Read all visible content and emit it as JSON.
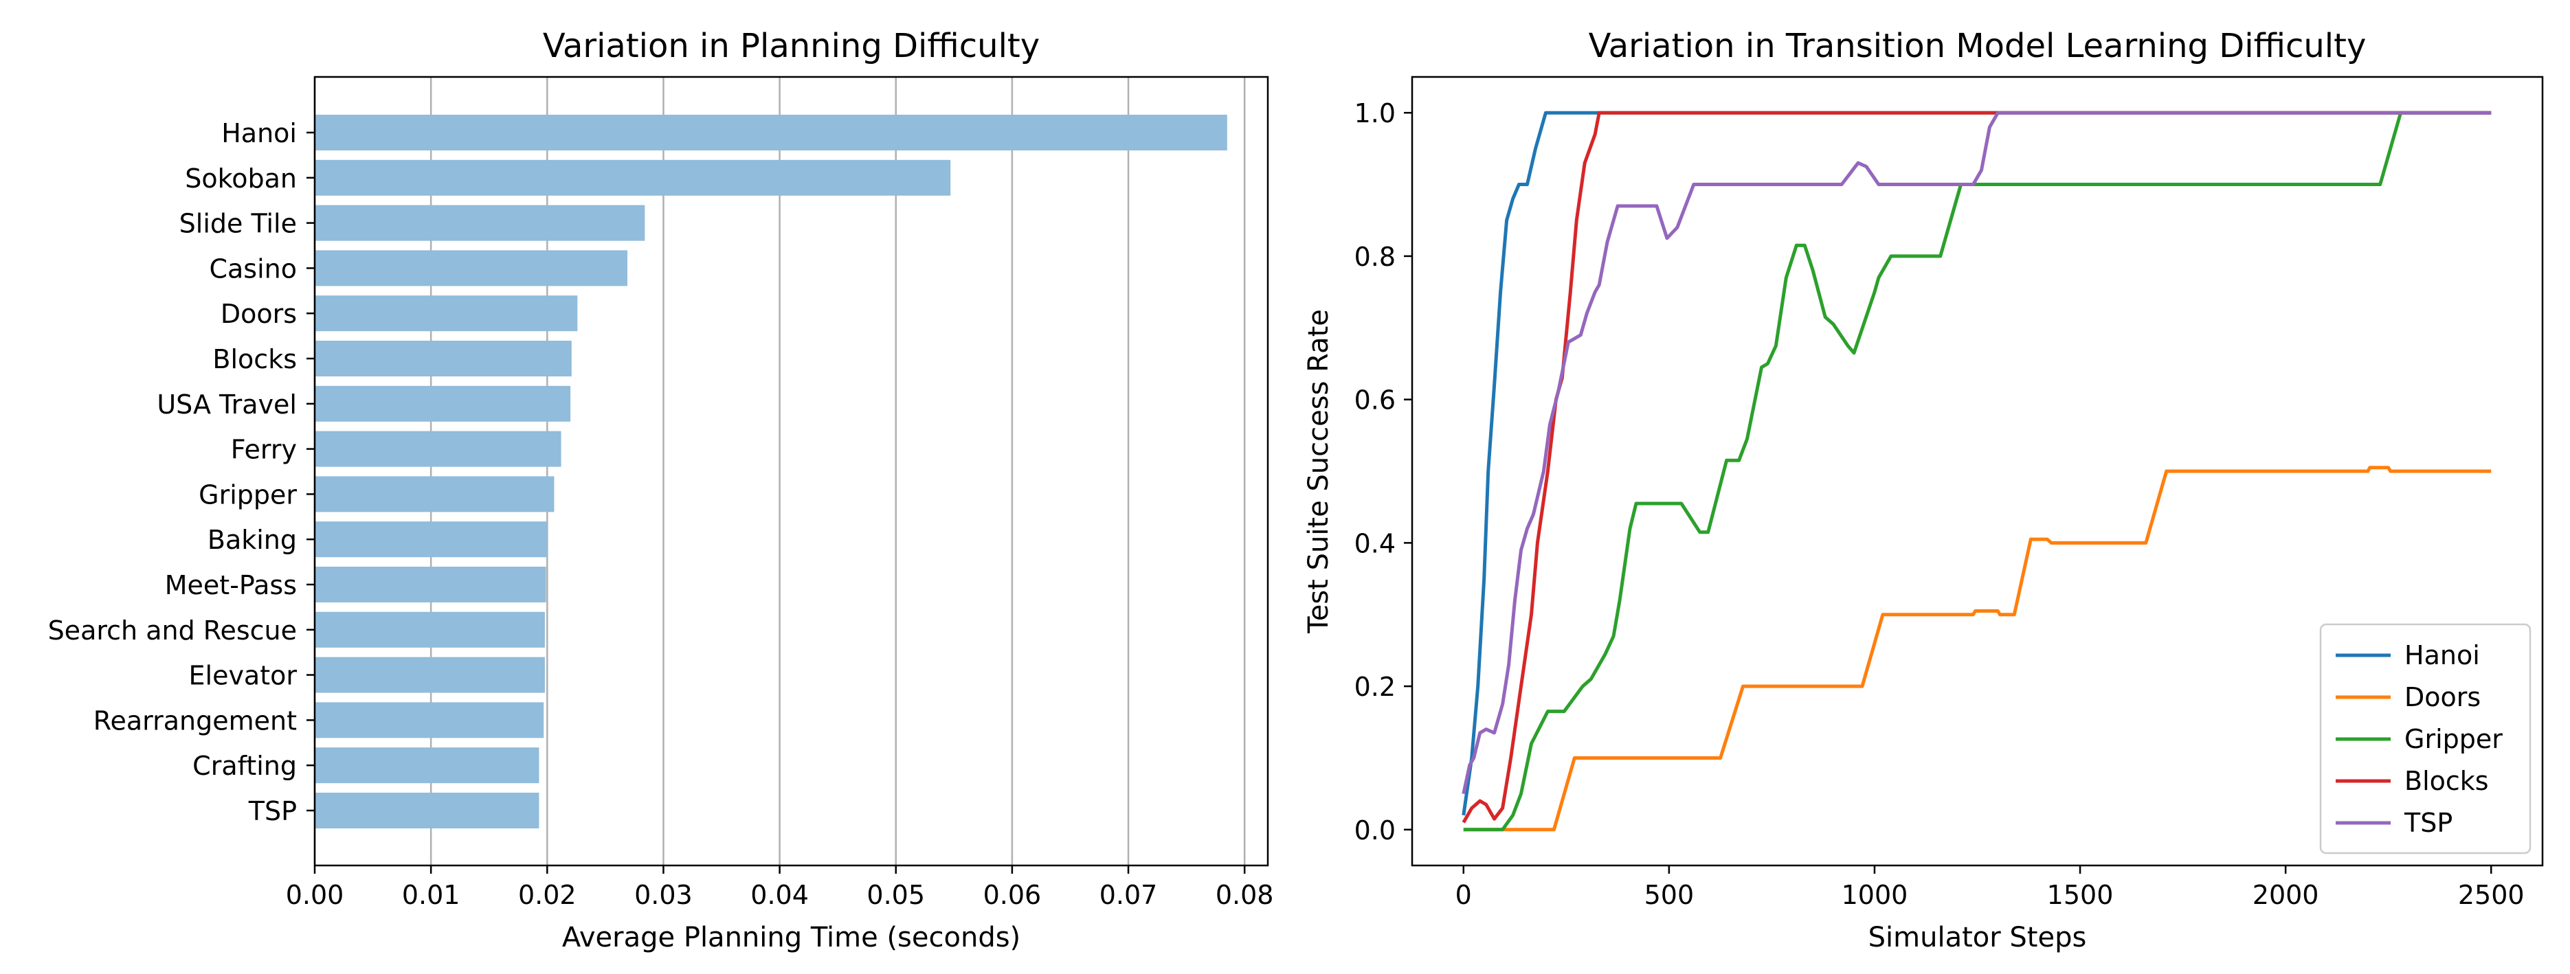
{
  "chart_data": [
    {
      "type": "bar",
      "orientation": "horizontal",
      "title": "Variation in Planning Difficulty",
      "xlabel": "Average Planning Time (seconds)",
      "ylabel": "",
      "xlim": [
        0.0,
        0.082
      ],
      "xticks": [
        0.0,
        0.01,
        0.02,
        0.03,
        0.04,
        0.05,
        0.06,
        0.07,
        0.08
      ],
      "xtick_labels": [
        "0.00",
        "0.01",
        "0.02",
        "0.03",
        "0.04",
        "0.05",
        "0.06",
        "0.07",
        "0.08"
      ],
      "grid": "x",
      "bar_color": "#91bcdb",
      "categories": [
        "Hanoi",
        "Sokoban",
        "Slide Tile",
        "Casino",
        "Doors",
        "Blocks",
        "USA Travel",
        "Ferry",
        "Gripper",
        "Baking",
        "Meet-Pass",
        "Search and Rescue",
        "Elevator",
        "Rearrangement",
        "Crafting",
        "TSP"
      ],
      "values": [
        0.0785,
        0.0547,
        0.0284,
        0.0269,
        0.0226,
        0.0221,
        0.022,
        0.0212,
        0.0206,
        0.02,
        0.0199,
        0.0198,
        0.0198,
        0.0197,
        0.0193,
        0.0193
      ]
    },
    {
      "type": "line",
      "title": "Variation in Transition Model Learning Difficulty",
      "xlabel": "Simulator Steps",
      "ylabel": "Test Suite Success Rate",
      "xlim": [
        -125,
        2625
      ],
      "ylim": [
        -0.05,
        1.05
      ],
      "xticks": [
        0,
        500,
        1000,
        1500,
        2000,
        2500
      ],
      "xtick_labels": [
        "0",
        "500",
        "1000",
        "1500",
        "2000",
        "2500"
      ],
      "yticks": [
        0.0,
        0.2,
        0.4,
        0.6,
        0.8,
        1.0
      ],
      "ytick_labels": [
        "0.0",
        "0.2",
        "0.4",
        "0.6",
        "0.8",
        "1.0"
      ],
      "grid": "none",
      "legend_position": "bottom-right",
      "series": [
        {
          "name": "Hanoi",
          "color": "#1f77b4",
          "points": [
            [
              0,
              0.02
            ],
            [
              20,
              0.1
            ],
            [
              35,
              0.2
            ],
            [
              50,
              0.35
            ],
            [
              60,
              0.5
            ],
            [
              75,
              0.62
            ],
            [
              90,
              0.75
            ],
            [
              105,
              0.85
            ],
            [
              120,
              0.88
            ],
            [
              135,
              0.9
            ],
            [
              155,
              0.9
            ],
            [
              175,
              0.95
            ],
            [
              200,
              1.0
            ],
            [
              2500,
              1.0
            ]
          ]
        },
        {
          "name": "Doors",
          "color": "#ff7f0e",
          "points": [
            [
              0,
              0.0
            ],
            [
              220,
              0.0
            ],
            [
              270,
              0.1
            ],
            [
              290,
              0.1
            ],
            [
              625,
              0.1
            ],
            [
              680,
              0.2
            ],
            [
              970,
              0.2
            ],
            [
              1020,
              0.3
            ],
            [
              1240,
              0.3
            ],
            [
              1245,
              0.305
            ],
            [
              1300,
              0.305
            ],
            [
              1305,
              0.3
            ],
            [
              1340,
              0.3
            ],
            [
              1380,
              0.405
            ],
            [
              1420,
              0.405
            ],
            [
              1430,
              0.4
            ],
            [
              1660,
              0.4
            ],
            [
              1710,
              0.5
            ],
            [
              2200,
              0.5
            ],
            [
              2205,
              0.505
            ],
            [
              2250,
              0.505
            ],
            [
              2255,
              0.5
            ],
            [
              2500,
              0.5
            ]
          ]
        },
        {
          "name": "Gripper",
          "color": "#2ca02c",
          "points": [
            [
              0,
              0.0
            ],
            [
              95,
              0.0
            ],
            [
              120,
              0.02
            ],
            [
              140,
              0.05
            ],
            [
              165,
              0.12
            ],
            [
              205,
              0.165
            ],
            [
              245,
              0.165
            ],
            [
              290,
              0.2
            ],
            [
              310,
              0.21
            ],
            [
              345,
              0.245
            ],
            [
              365,
              0.27
            ],
            [
              380,
              0.32
            ],
            [
              405,
              0.42
            ],
            [
              420,
              0.455
            ],
            [
              530,
              0.455
            ],
            [
              575,
              0.415
            ],
            [
              595,
              0.415
            ],
            [
              640,
              0.515
            ],
            [
              670,
              0.515
            ],
            [
              690,
              0.545
            ],
            [
              725,
              0.645
            ],
            [
              740,
              0.65
            ],
            [
              760,
              0.675
            ],
            [
              785,
              0.77
            ],
            [
              810,
              0.815
            ],
            [
              830,
              0.815
            ],
            [
              850,
              0.78
            ],
            [
              880,
              0.715
            ],
            [
              900,
              0.705
            ],
            [
              935,
              0.675
            ],
            [
              950,
              0.665
            ],
            [
              1000,
              0.75
            ],
            [
              1010,
              0.77
            ],
            [
              1040,
              0.8
            ],
            [
              1160,
              0.8
            ],
            [
              1210,
              0.9
            ],
            [
              2230,
              0.9
            ],
            [
              2280,
              1.0
            ],
            [
              2500,
              1.0
            ]
          ]
        },
        {
          "name": "Blocks",
          "color": "#d62728",
          "points": [
            [
              0,
              0.01
            ],
            [
              20,
              0.03
            ],
            [
              40,
              0.04
            ],
            [
              55,
              0.035
            ],
            [
              75,
              0.015
            ],
            [
              95,
              0.03
            ],
            [
              115,
              0.1
            ],
            [
              140,
              0.2
            ],
            [
              165,
              0.3
            ],
            [
              180,
              0.4
            ],
            [
              205,
              0.5
            ],
            [
              225,
              0.6
            ],
            [
              240,
              0.63
            ],
            [
              260,
              0.75
            ],
            [
              275,
              0.85
            ],
            [
              295,
              0.93
            ],
            [
              320,
              0.97
            ],
            [
              330,
              1.0
            ],
            [
              2500,
              1.0
            ]
          ]
        },
        {
          "name": "TSP",
          "color": "#9467bd",
          "points": [
            [
              0,
              0.05
            ],
            [
              15,
              0.09
            ],
            [
              25,
              0.1
            ],
            [
              40,
              0.135
            ],
            [
              55,
              0.14
            ],
            [
              75,
              0.135
            ],
            [
              95,
              0.175
            ],
            [
              110,
              0.23
            ],
            [
              125,
              0.32
            ],
            [
              140,
              0.39
            ],
            [
              155,
              0.42
            ],
            [
              170,
              0.44
            ],
            [
              195,
              0.5
            ],
            [
              210,
              0.565
            ],
            [
              230,
              0.61
            ],
            [
              255,
              0.68
            ],
            [
              285,
              0.69
            ],
            [
              300,
              0.72
            ],
            [
              320,
              0.75
            ],
            [
              330,
              0.76
            ],
            [
              350,
              0.82
            ],
            [
              375,
              0.87
            ],
            [
              470,
              0.87
            ],
            [
              495,
              0.825
            ],
            [
              520,
              0.84
            ],
            [
              560,
              0.9
            ],
            [
              920,
              0.9
            ],
            [
              960,
              0.93
            ],
            [
              980,
              0.925
            ],
            [
              1010,
              0.9
            ],
            [
              1240,
              0.9
            ],
            [
              1260,
              0.92
            ],
            [
              1280,
              0.98
            ],
            [
              1300,
              1.0
            ],
            [
              2500,
              1.0
            ]
          ]
        }
      ]
    }
  ]
}
